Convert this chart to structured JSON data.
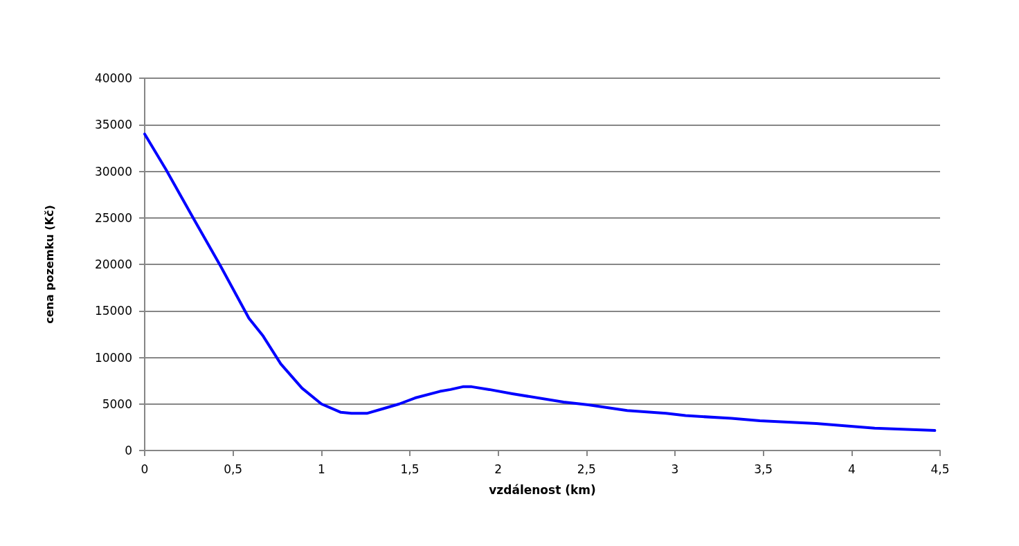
{
  "chart_data": {
    "type": "line",
    "xlabel": "vzdálenost (km)",
    "ylabel": "cena pozemku (Kč)",
    "xlim": [
      0,
      4.5
    ],
    "xticks": [
      0,
      {
        "value": 0.5,
        "label": "0,5"
      },
      1,
      {
        "value": 1.5,
        "label": "1,5"
      },
      2,
      {
        "value": 2.5,
        "label": "2,5"
      },
      3,
      {
        "value": 3.5,
        "label": "3,5"
      },
      4,
      {
        "value": 4.5,
        "label": "4,5"
      }
    ],
    "ylim": [
      0,
      40000
    ],
    "yticks": [
      0,
      5000,
      10000,
      15000,
      20000,
      25000,
      30000,
      35000,
      40000
    ],
    "grid": "y",
    "marker": "none",
    "line_style": "solid",
    "series": [
      {
        "color": "#0000ff",
        "x": [
          0,
          0.12,
          0.28,
          0.43,
          0.59,
          0.67,
          0.77,
          0.89,
          1.0,
          1.11,
          1.17,
          1.26,
          1.35,
          1.44,
          1.53,
          1.67,
          1.73,
          1.8,
          1.85,
          1.95,
          2.08,
          2.37,
          2.51,
          2.73,
          2.95,
          3.06,
          3.32,
          3.48,
          3.8,
          4.13,
          4.47
        ],
        "values": [
          34000,
          30200,
          24800,
          19800,
          14200,
          12300,
          9300,
          6700,
          5000,
          4100,
          4000,
          4000,
          4500,
          5000,
          5650,
          6350,
          6550,
          6850,
          6850,
          6550,
          6100,
          5200,
          4900,
          4300,
          4000,
          3750,
          3450,
          3200,
          2900,
          2400,
          2150
        ]
      }
    ]
  }
}
